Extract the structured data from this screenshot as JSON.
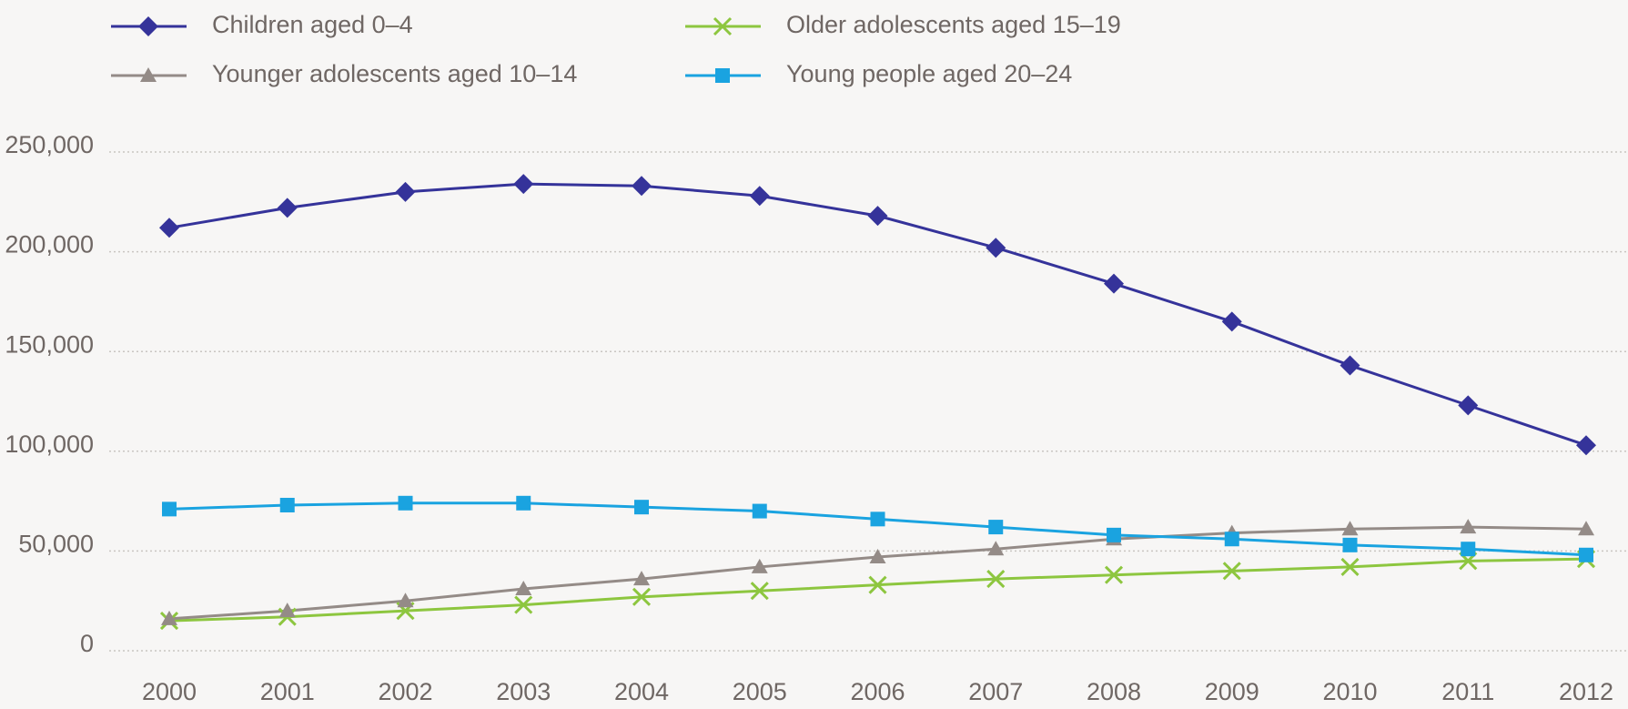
{
  "chart_data": {
    "type": "line",
    "categories": [
      "2000",
      "2001",
      "2002",
      "2003",
      "2004",
      "2005",
      "2006",
      "2007",
      "2008",
      "2009",
      "2010",
      "2011",
      "2012"
    ],
    "series": [
      {
        "name": "Children aged  0–4",
        "color": "#35339a",
        "marker": "diamond",
        "values": [
          212000,
          222000,
          230000,
          234000,
          233000,
          228000,
          218000,
          202000,
          184000,
          165000,
          143000,
          123000,
          103000
        ]
      },
      {
        "name": "Older adolescents aged 15–19",
        "color": "#8dc63f",
        "marker": "x",
        "values": [
          15000,
          17000,
          20000,
          23000,
          27000,
          30000,
          33000,
          36000,
          38000,
          40000,
          42000,
          45000,
          46000
        ]
      },
      {
        "name": "Younger adolescents aged 10–14",
        "color": "#948b87",
        "marker": "triangle",
        "values": [
          16000,
          20000,
          25000,
          31000,
          36000,
          42000,
          47000,
          51000,
          56000,
          59000,
          61000,
          62000,
          61000
        ]
      },
      {
        "name": "Young people aged 20–24",
        "color": "#1aa3e0",
        "marker": "square",
        "values": [
          71000,
          73000,
          74000,
          74000,
          72000,
          70000,
          66000,
          62000,
          58000,
          56000,
          53000,
          51000,
          48000
        ]
      }
    ],
    "ylim": [
      0,
      250000
    ],
    "yticks": [
      0,
      {
        "value": 50000,
        "label": "50,000"
      },
      {
        "value": 100000,
        "label": "100,000"
      },
      {
        "value": 150000,
        "label": "150,000"
      },
      {
        "value": 200000,
        "label": "200,000"
      },
      {
        "value": 250000,
        "label": "250,000"
      }
    ],
    "grid": true,
    "legend": "top"
  }
}
